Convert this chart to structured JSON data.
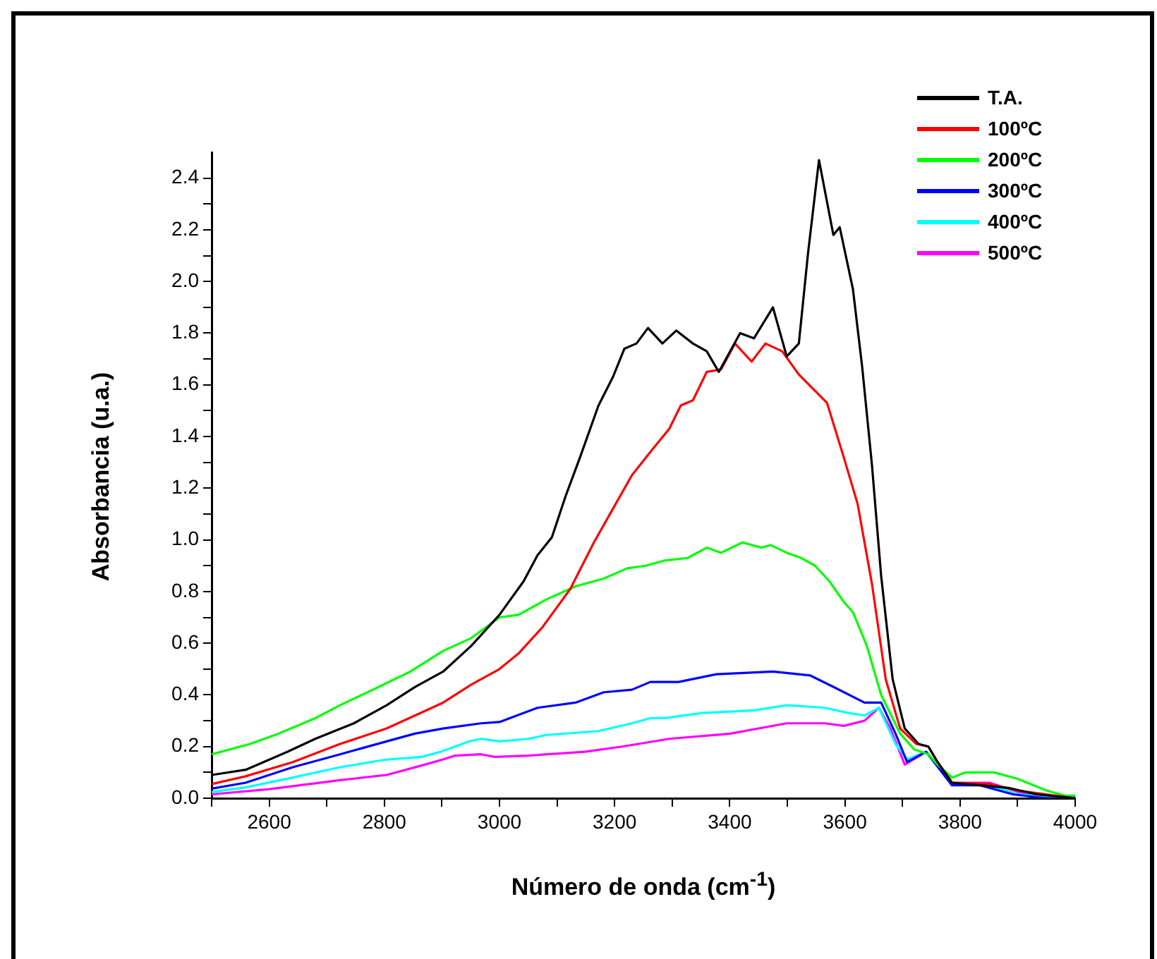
{
  "chart_data": {
    "type": "line",
    "xlabel": "Número de onda (cm$^{-1}$)",
    "ylabel": "Absorbancia (u.a.)",
    "xlim": [
      2500,
      4000
    ],
    "ylim": [
      0,
      2.5
    ],
    "xticks": [
      {
        "value": 2500,
        "label": null
      },
      2600,
      {
        "value": 2700,
        "label": null
      },
      2800,
      {
        "value": 2900,
        "label": null
      },
      3000,
      {
        "value": 3100,
        "label": null
      },
      3200,
      {
        "value": 3300,
        "label": null
      },
      3400,
      {
        "value": 3500,
        "label": null
      },
      3600,
      {
        "value": 3700,
        "label": null
      },
      3800,
      {
        "value": 3900,
        "label": null
      },
      4000
    ],
    "yticks": [
      {
        "value": 0,
        "label": "0.0"
      },
      {
        "value": 0.1,
        "label": null
      },
      0.2,
      {
        "value": 0.3,
        "label": null
      },
      0.4,
      {
        "value": 0.5,
        "label": null
      },
      0.6,
      {
        "value": 0.7,
        "label": null
      },
      0.8,
      {
        "value": 0.9,
        "label": null
      },
      {
        "value": 1,
        "label": "1.0"
      },
      {
        "value": 1.1,
        "label": null
      },
      1.2,
      {
        "value": 1.3,
        "label": null
      },
      1.4,
      {
        "value": 1.5,
        "label": null
      },
      1.6,
      {
        "value": 1.7,
        "label": null
      },
      1.8,
      {
        "value": 1.9,
        "label": null
      },
      {
        "value": 2,
        "label": "2.0"
      },
      {
        "value": 2.1,
        "label": null
      },
      2.2,
      {
        "value": 2.3,
        "label": null
      },
      2.4
    ],
    "grid": false,
    "legend": "top right",
    "marker": "none",
    "line_style": "solid",
    "series": [
      {
        "name": "T.A.",
        "color": "#000000",
        "x": [
          2500,
          2559,
          2632,
          2680,
          2747,
          2804,
          2853,
          2902,
          2951,
          3000,
          3042,
          3066,
          3091,
          3115,
          3140,
          3172,
          3197,
          3217,
          3238,
          3258,
          3283,
          3307,
          3336,
          3360,
          3381,
          3418,
          3442,
          3475,
          3499,
          3520,
          3536,
          3555,
          3580,
          3591,
          3614,
          3630,
          3647,
          3663,
          3683,
          3704,
          3728,
          3745,
          3761,
          3786,
          3835,
          3884,
          3933,
          4000
        ],
        "values": [
          0.09,
          0.11,
          0.18,
          0.23,
          0.29,
          0.36,
          0.43,
          0.49,
          0.59,
          0.71,
          0.84,
          0.94,
          1.01,
          1.17,
          1.32,
          1.52,
          1.63,
          1.74,
          1.76,
          1.82,
          1.76,
          1.81,
          1.76,
          1.73,
          1.65,
          1.8,
          1.78,
          1.9,
          1.71,
          1.76,
          2.11,
          2.47,
          2.18,
          2.21,
          1.97,
          1.67,
          1.29,
          0.86,
          0.46,
          0.27,
          0.21,
          0.2,
          0.14,
          0.06,
          0.05,
          0.04,
          0.015,
          0
        ]
      },
      {
        "name": "100ºC",
        "color": "#ff0000",
        "x": [
          2500,
          2559,
          2641,
          2723,
          2804,
          2853,
          2902,
          2951,
          3000,
          3033,
          3074,
          3123,
          3164,
          3197,
          3230,
          3262,
          3295,
          3315,
          3336,
          3360,
          3385,
          3409,
          3438,
          3462,
          3491,
          3520,
          3569,
          3598,
          3622,
          3647,
          3671,
          3696,
          3724,
          3745,
          3761,
          3786,
          3850,
          3900,
          4000
        ],
        "values": [
          0.055,
          0.085,
          0.14,
          0.21,
          0.27,
          0.32,
          0.37,
          0.44,
          0.5,
          0.56,
          0.66,
          0.81,
          0.99,
          1.12,
          1.25,
          1.34,
          1.43,
          1.52,
          1.54,
          1.65,
          1.66,
          1.76,
          1.69,
          1.76,
          1.73,
          1.64,
          1.53,
          1.32,
          1.14,
          0.83,
          0.46,
          0.27,
          0.21,
          0.2,
          0.14,
          0.06,
          0.055,
          0.03,
          0
        ]
      },
      {
        "name": "200ºC",
        "color": "#00ff00",
        "x": [
          2500,
          2567,
          2616,
          2680,
          2723,
          2780,
          2845,
          2902,
          2951,
          3000,
          3033,
          3082,
          3132,
          3181,
          3222,
          3254,
          3287,
          3327,
          3360,
          3385,
          3422,
          3455,
          3471,
          3499,
          3524,
          3548,
          3573,
          3598,
          3614,
          3638,
          3663,
          3696,
          3720,
          3745,
          3761,
          3786,
          3810,
          3859,
          3900,
          3950,
          3982,
          4000
        ],
        "values": [
          0.17,
          0.21,
          0.25,
          0.31,
          0.36,
          0.42,
          0.49,
          0.57,
          0.62,
          0.7,
          0.71,
          0.77,
          0.82,
          0.85,
          0.89,
          0.9,
          0.92,
          0.93,
          0.97,
          0.95,
          0.99,
          0.97,
          0.98,
          0.95,
          0.93,
          0.9,
          0.84,
          0.76,
          0.72,
          0.59,
          0.4,
          0.25,
          0.19,
          0.17,
          0.13,
          0.08,
          0.1,
          0.1,
          0.075,
          0.03,
          0.01,
          0.01
        ]
      },
      {
        "name": "300ºC",
        "color": "#0000ff",
        "x": [
          2500,
          2559,
          2641,
          2723,
          2804,
          2853,
          2902,
          2968,
          3000,
          3066,
          3132,
          3181,
          3230,
          3262,
          3311,
          3377,
          3475,
          3540,
          3581,
          3634,
          3663,
          3688,
          3708,
          3741,
          3786,
          3835,
          3892,
          3950,
          4000
        ],
        "values": [
          0.037,
          0.06,
          0.12,
          0.17,
          0.22,
          0.25,
          0.27,
          0.29,
          0.295,
          0.35,
          0.37,
          0.41,
          0.42,
          0.45,
          0.45,
          0.48,
          0.49,
          0.475,
          0.43,
          0.37,
          0.37,
          0.25,
          0.14,
          0.18,
          0.05,
          0.05,
          0.015,
          0,
          0
        ]
      },
      {
        "name": "400ºC",
        "color": "#00ffff",
        "x": [
          2500,
          2559,
          2641,
          2723,
          2804,
          2865,
          2898,
          2947,
          2968,
          3000,
          3050,
          3082,
          3172,
          3230,
          3262,
          3287,
          3352,
          3442,
          3499,
          3565,
          3606,
          3634,
          3659,
          3688,
          3708,
          3741,
          3786,
          3843,
          3900,
          4000
        ],
        "values": [
          0.024,
          0.042,
          0.08,
          0.12,
          0.15,
          0.16,
          0.18,
          0.22,
          0.23,
          0.22,
          0.23,
          0.245,
          0.26,
          0.29,
          0.31,
          0.31,
          0.33,
          0.34,
          0.36,
          0.35,
          0.33,
          0.32,
          0.35,
          0.21,
          0.15,
          0.18,
          0.055,
          0.055,
          0.015,
          0
        ]
      },
      {
        "name": "500ºC",
        "color": "#ff00ff",
        "x": [
          2500,
          2600,
          2723,
          2804,
          2870,
          2902,
          2923,
          2968,
          2992,
          3050,
          3148,
          3213,
          3295,
          3401,
          3499,
          3565,
          3598,
          3634,
          3659,
          3679,
          3704,
          3741,
          3786,
          3851,
          3900,
          3966,
          4000
        ],
        "values": [
          0.015,
          0.035,
          0.07,
          0.09,
          0.13,
          0.15,
          0.165,
          0.17,
          0.16,
          0.165,
          0.18,
          0.2,
          0.23,
          0.25,
          0.29,
          0.29,
          0.28,
          0.3,
          0.35,
          0.27,
          0.13,
          0.18,
          0.06,
          0.06,
          0.025,
          0,
          0
        ]
      }
    ]
  }
}
